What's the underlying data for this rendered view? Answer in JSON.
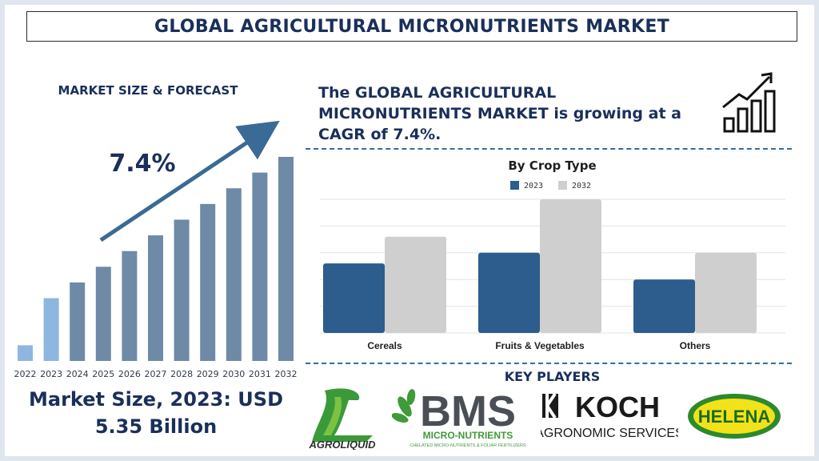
{
  "header": {
    "title": "GLOBAL AGRICULTURAL MICRONUTRIENTS MARKET"
  },
  "left": {
    "section_title": "MARKET SIZE & FORECAST",
    "cagr_label": "7.4%",
    "market_size_line1": "Market Size, 2023: USD",
    "market_size_line2": "5.35 Billion"
  },
  "right": {
    "headline_line1": "The GLOBAL AGRICULTURAL",
    "headline_line2": "MICRONUTRIENTS MARKET is growing at a",
    "headline_line3": "CAGR of 7.4%.",
    "key_players_title": "KEY PLAYERS"
  },
  "players": {
    "agroliquid": "AGROLIQUID",
    "bms": "BMS",
    "bms_sub1": "MICRO-NUTRIENTS",
    "bms_sub2": "CHELATED MICRO-NUTRIENTS & FOLIAR FERTILIZERS",
    "koch": "KOCH",
    "koch_sub": "AGRONOMIC SERVICES",
    "helena": "HELENA"
  },
  "colors": {
    "navy": "#1a2f5a",
    "bar_light": "#8fb6de",
    "bar_mid": "#6e8aa6",
    "series_2023": "#2c5d8c",
    "series_2032": "#cfcfcf",
    "arrow": "#3a6a96"
  },
  "chart_data": [
    {
      "type": "bar",
      "title": "MARKET SIZE & FORECAST",
      "categories": [
        "2022",
        "2023",
        "2024",
        "2025",
        "2026",
        "2027",
        "2028",
        "2029",
        "2030",
        "2031",
        "2032"
      ],
      "values": [
        1.0,
        4.0,
        5.0,
        6.0,
        7.0,
        8.0,
        9.0,
        10.0,
        11.0,
        12.0,
        13.0
      ],
      "highlight_indices": [
        0,
        1
      ],
      "annotation": "7.4%",
      "ylim": [
        0,
        13.5
      ],
      "grid": false
    },
    {
      "type": "bar",
      "title": "By Crop Type",
      "categories": [
        "Cereals",
        "Fruits & Vegetables",
        "Others"
      ],
      "series": [
        {
          "name": "2023",
          "values": [
            26,
            30,
            20
          ]
        },
        {
          "name": "2032",
          "values": [
            36,
            50,
            30
          ]
        }
      ],
      "ylim": [
        0,
        50
      ],
      "grid": true,
      "legend": "top"
    }
  ]
}
